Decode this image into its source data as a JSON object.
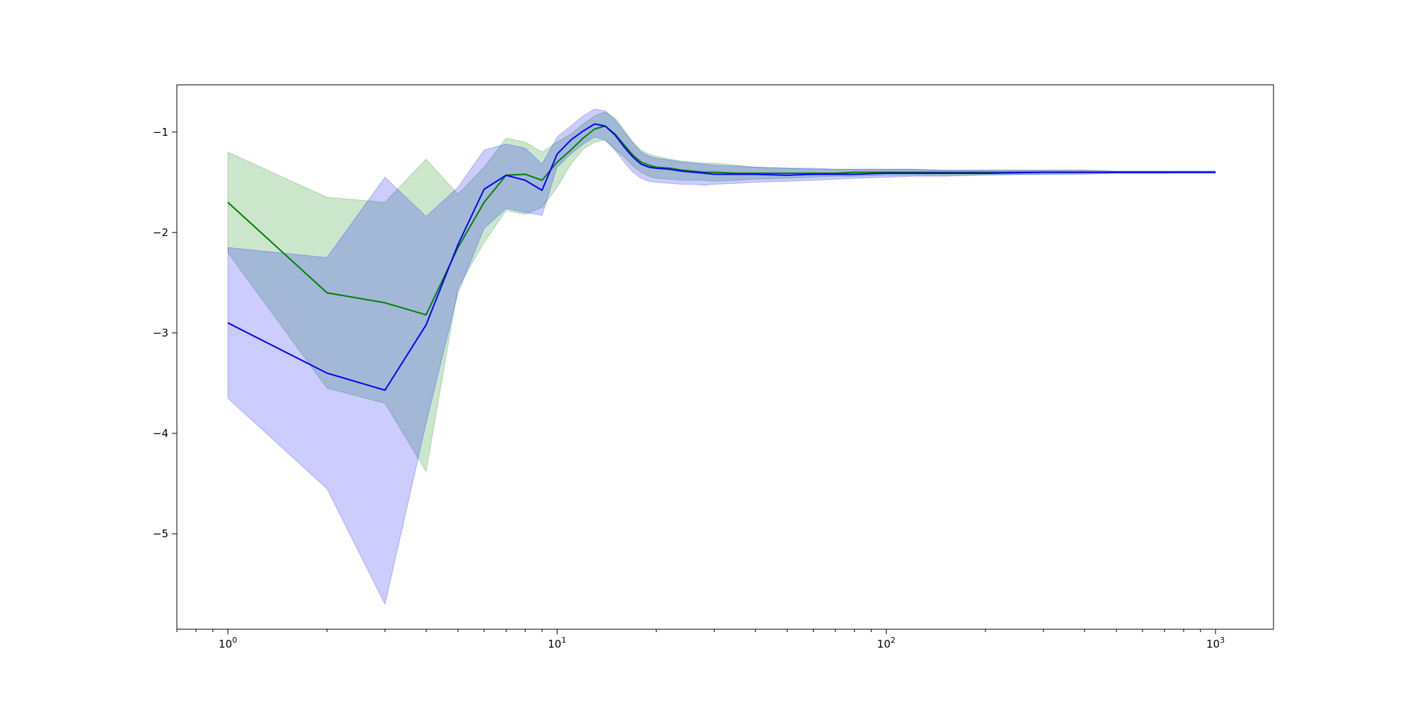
{
  "chart_data": {
    "type": "line",
    "title": "",
    "xlabel": "",
    "ylabel": "",
    "xscale": "log",
    "xlim": [
      0.7,
      1500
    ],
    "ylim": [
      -5.95,
      -0.53
    ],
    "grid": false,
    "legend": "none",
    "x_ticks": [
      {
        "base": "10",
        "exp": "0",
        "value": 1
      },
      {
        "base": "10",
        "exp": "1",
        "value": 10
      },
      {
        "base": "10",
        "exp": "2",
        "value": 100
      },
      {
        "base": "10",
        "exp": "3",
        "value": 1000
      }
    ],
    "y_ticks": [
      {
        "label": "−1",
        "value": -1
      },
      {
        "label": "−2",
        "value": -2
      },
      {
        "label": "−3",
        "value": -3
      },
      {
        "label": "−4",
        "value": -4
      },
      {
        "label": "−5",
        "value": -5
      }
    ],
    "series": [
      {
        "color": "#008000",
        "band_color": "#008000",
        "band_opacity": 0.2,
        "x": [
          1,
          2,
          3,
          4,
          5,
          6,
          7,
          8,
          9,
          10,
          11,
          12,
          13,
          14,
          15,
          16,
          17,
          18,
          19,
          20,
          22,
          24,
          26,
          28,
          30,
          35,
          40,
          50,
          60,
          70,
          80,
          100,
          120,
          150,
          200,
          300,
          400,
          500,
          700,
          1000
        ],
        "y": [
          -1.7,
          -2.6,
          -2.7,
          -2.82,
          -2.15,
          -1.7,
          -1.43,
          -1.42,
          -1.48,
          -1.3,
          -1.18,
          -1.06,
          -0.97,
          -0.94,
          -1.02,
          -1.13,
          -1.23,
          -1.3,
          -1.33,
          -1.35,
          -1.36,
          -1.38,
          -1.39,
          -1.4,
          -1.4,
          -1.41,
          -1.41,
          -1.41,
          -1.41,
          -1.41,
          -1.4,
          -1.4,
          -1.4,
          -1.4,
          -1.4,
          -1.4,
          -1.4,
          -1.4,
          -1.4,
          -1.4
        ],
        "lower": [
          -2.2,
          -3.55,
          -3.7,
          -4.38,
          -2.55,
          -2.1,
          -1.78,
          -1.82,
          -1.75,
          -1.55,
          -1.32,
          -1.17,
          -1.1,
          -1.08,
          -1.17,
          -1.25,
          -1.34,
          -1.4,
          -1.44,
          -1.46,
          -1.47,
          -1.48,
          -1.48,
          -1.48,
          -1.49,
          -1.48,
          -1.47,
          -1.46,
          -1.45,
          -1.44,
          -1.44,
          -1.43,
          -1.43,
          -1.43,
          -1.42,
          -1.42,
          -1.41,
          -1.41,
          -1.41,
          -1.4
        ],
        "upper": [
          -1.2,
          -1.65,
          -1.7,
          -1.27,
          -1.62,
          -1.35,
          -1.06,
          -1.1,
          -1.2,
          -1.1,
          -1.02,
          -0.92,
          -0.84,
          -0.8,
          -0.86,
          -0.98,
          -1.1,
          -1.18,
          -1.22,
          -1.24,
          -1.27,
          -1.29,
          -1.3,
          -1.31,
          -1.31,
          -1.33,
          -1.35,
          -1.36,
          -1.37,
          -1.37,
          -1.37,
          -1.37,
          -1.37,
          -1.38,
          -1.38,
          -1.38,
          -1.38,
          -1.39,
          -1.39,
          -1.39
        ]
      },
      {
        "color": "#0000ff",
        "band_color": "#0000ff",
        "band_opacity": 0.2,
        "x": [
          1,
          2,
          3,
          4,
          5,
          6,
          7,
          8,
          9,
          10,
          11,
          12,
          13,
          14,
          15,
          16,
          17,
          18,
          19,
          20,
          22,
          24,
          26,
          28,
          30,
          35,
          40,
          50,
          60,
          70,
          80,
          100,
          120,
          150,
          200,
          300,
          400,
          500,
          700,
          1000
        ],
        "y": [
          -2.9,
          -3.4,
          -3.57,
          -2.92,
          -2.12,
          -1.57,
          -1.43,
          -1.48,
          -1.58,
          -1.22,
          -1.08,
          -0.99,
          -0.92,
          -0.94,
          -1.03,
          -1.15,
          -1.25,
          -1.32,
          -1.35,
          -1.36,
          -1.37,
          -1.39,
          -1.4,
          -1.41,
          -1.42,
          -1.42,
          -1.42,
          -1.43,
          -1.42,
          -1.42,
          -1.42,
          -1.41,
          -1.41,
          -1.41,
          -1.41,
          -1.4,
          -1.4,
          -1.4,
          -1.4,
          -1.4
        ],
        "lower": [
          -3.65,
          -4.55,
          -5.7,
          -3.9,
          -2.6,
          -1.96,
          -1.76,
          -1.8,
          -1.83,
          -1.35,
          -1.22,
          -1.12,
          -1.05,
          -1.08,
          -1.18,
          -1.3,
          -1.4,
          -1.46,
          -1.49,
          -1.5,
          -1.51,
          -1.52,
          -1.52,
          -1.53,
          -1.52,
          -1.51,
          -1.5,
          -1.49,
          -1.48,
          -1.47,
          -1.46,
          -1.45,
          -1.44,
          -1.44,
          -1.43,
          -1.42,
          -1.42,
          -1.41,
          -1.41,
          -1.41
        ],
        "upper": [
          -2.15,
          -2.25,
          -1.45,
          -1.84,
          -1.55,
          -1.18,
          -1.12,
          -1.16,
          -1.32,
          -1.05,
          -0.94,
          -0.84,
          -0.77,
          -0.79,
          -0.88,
          -1.0,
          -1.11,
          -1.2,
          -1.24,
          -1.26,
          -1.28,
          -1.3,
          -1.31,
          -1.32,
          -1.33,
          -1.34,
          -1.35,
          -1.36,
          -1.36,
          -1.37,
          -1.37,
          -1.37,
          -1.37,
          -1.38,
          -1.38,
          -1.38,
          -1.38,
          -1.39,
          -1.39,
          -1.39
        ]
      }
    ]
  }
}
